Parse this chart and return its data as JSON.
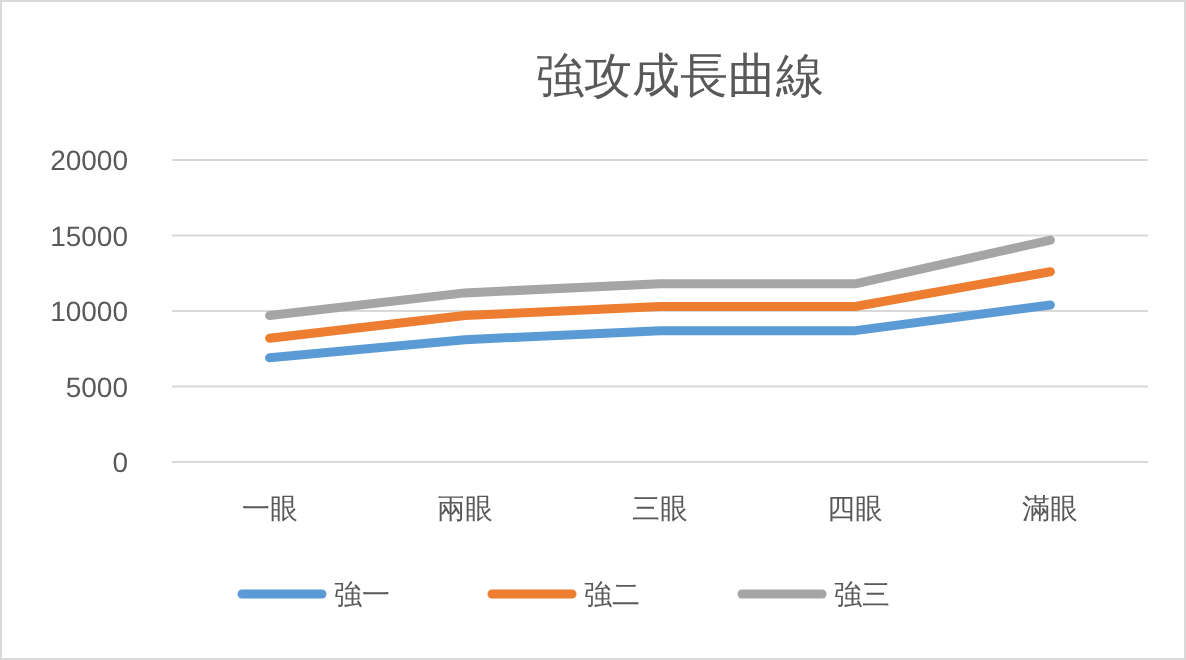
{
  "chart_data": {
    "type": "line",
    "title": "強攻成長曲線",
    "categories": [
      "一眼",
      "兩眼",
      "三眼",
      "四眼",
      "滿眼"
    ],
    "series": [
      {
        "name": "強一",
        "color": "#5b9bd5",
        "values": [
          6900,
          8100,
          8700,
          8700,
          10400
        ]
      },
      {
        "name": "強二",
        "color": "#ed7d31",
        "values": [
          8200,
          9700,
          10300,
          10300,
          12600
        ]
      },
      {
        "name": "強三",
        "color": "#a5a5a5",
        "values": [
          9700,
          11200,
          11800,
          11800,
          14700
        ]
      }
    ],
    "ylim": [
      0,
      20000
    ],
    "yticks": [
      0,
      5000,
      10000,
      15000,
      20000
    ],
    "grid": "y",
    "legend": "bottom",
    "marker": "none",
    "line_style": "solid"
  }
}
